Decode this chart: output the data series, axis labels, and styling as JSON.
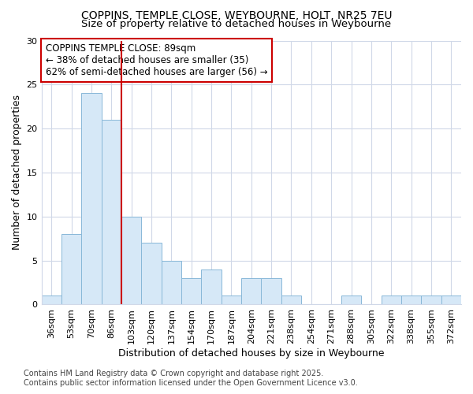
{
  "title_line1": "COPPINS, TEMPLE CLOSE, WEYBOURNE, HOLT, NR25 7EU",
  "title_line2": "Size of property relative to detached houses in Weybourne",
  "xlabel": "Distribution of detached houses by size in Weybourne",
  "ylabel": "Number of detached properties",
  "categories": [
    "36sqm",
    "53sqm",
    "70sqm",
    "86sqm",
    "103sqm",
    "120sqm",
    "137sqm",
    "154sqm",
    "170sqm",
    "187sqm",
    "204sqm",
    "221sqm",
    "238sqm",
    "254sqm",
    "271sqm",
    "288sqm",
    "305sqm",
    "322sqm",
    "338sqm",
    "355sqm",
    "372sqm"
  ],
  "values": [
    1,
    8,
    24,
    21,
    10,
    7,
    5,
    3,
    4,
    1,
    3,
    3,
    1,
    0,
    0,
    1,
    0,
    1,
    1,
    1,
    1
  ],
  "bar_color": "#d6e8f7",
  "bar_edgecolor": "#88b8d8",
  "vline_x_index": 3,
  "vline_color": "#cc0000",
  "annotation_text": "COPPINS TEMPLE CLOSE: 89sqm\n← 38% of detached houses are smaller (35)\n62% of semi-detached houses are larger (56) →",
  "annotation_box_color": "#ffffff",
  "annotation_box_edgecolor": "#cc0000",
  "ylim": [
    0,
    30
  ],
  "yticks": [
    0,
    5,
    10,
    15,
    20,
    25,
    30
  ],
  "background_color": "#ffffff",
  "plot_bg_color": "#ffffff",
  "grid_color": "#d0d8e8",
  "footer_line1": "Contains HM Land Registry data © Crown copyright and database right 2025.",
  "footer_line2": "Contains public sector information licensed under the Open Government Licence v3.0.",
  "title_fontsize": 10,
  "subtitle_fontsize": 9.5,
  "axis_label_fontsize": 9,
  "tick_fontsize": 8,
  "annotation_fontsize": 8.5,
  "footer_fontsize": 7
}
